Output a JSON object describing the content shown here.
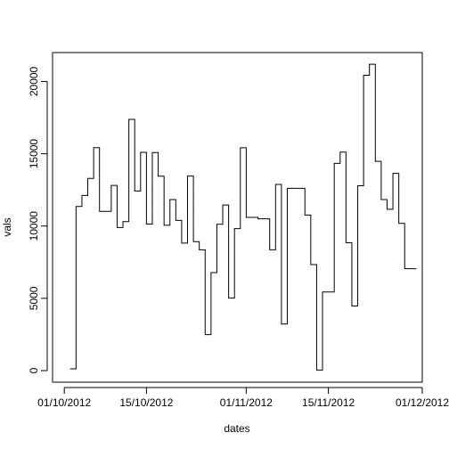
{
  "chart_data": {
    "type": "line",
    "step": true,
    "title": "",
    "xlabel": "dates",
    "ylabel": "vals",
    "xlim": [
      "2012-09-29",
      "2012-12-01"
    ],
    "ylim": [
      -800,
      22000
    ],
    "x_ticks": [
      {
        "date": "2012-10-01",
        "label": "01/10/2012"
      },
      {
        "date": "2012-10-15",
        "label": "15/10/2012"
      },
      {
        "date": "2012-11-01",
        "label": "01/11/2012"
      },
      {
        "date": "2012-11-15",
        "label": "15/11/2012"
      },
      {
        "date": "2012-12-01",
        "label": "01/12/2012"
      }
    ],
    "y_ticks": [
      0,
      5000,
      10000,
      15000,
      20000
    ],
    "x": [
      "2012-10-02",
      "2012-10-03",
      "2012-10-04",
      "2012-10-05",
      "2012-10-06",
      "2012-10-07",
      "2012-10-09",
      "2012-10-10",
      "2012-10-11",
      "2012-10-12",
      "2012-10-13",
      "2012-10-14",
      "2012-10-15",
      "2012-10-16",
      "2012-10-17",
      "2012-10-18",
      "2012-10-19",
      "2012-10-20",
      "2012-10-21",
      "2012-10-22",
      "2012-10-23",
      "2012-10-24",
      "2012-10-25",
      "2012-10-26",
      "2012-10-27",
      "2012-10-28",
      "2012-10-29",
      "2012-10-30",
      "2012-10-31",
      "2012-11-01",
      "2012-11-03",
      "2012-11-05",
      "2012-11-06",
      "2012-11-07",
      "2012-11-08",
      "2012-11-11",
      "2012-11-12",
      "2012-11-13",
      "2012-11-14",
      "2012-11-16",
      "2012-11-17",
      "2012-11-18",
      "2012-11-19",
      "2012-11-20",
      "2012-11-21",
      "2012-11-22",
      "2012-11-23",
      "2012-11-24",
      "2012-11-25",
      "2012-11-26",
      "2012-11-27",
      "2012-11-28",
      "2012-11-29",
      "2012-11-30"
    ],
    "series": [
      {
        "values": [
          126,
          11352,
          12116,
          13294,
          15420,
          11015,
          12811,
          9900,
          10304,
          17382,
          12426,
          15098,
          10139,
          15084,
          13452,
          10056,
          11829,
          10395,
          8821,
          13460,
          8918,
          8355,
          2492,
          6778,
          10119,
          11458,
          5018,
          9819,
          15414,
          10600,
          10500,
          8355,
          12883,
          3219,
          12608,
          10765,
          7336,
          41,
          5441,
          14339,
          15110,
          8841,
          4472,
          12787,
          20427,
          21194,
          14478,
          11834,
          11162,
          13646,
          10183,
          7047,
          7047,
          7047
        ]
      }
    ]
  }
}
